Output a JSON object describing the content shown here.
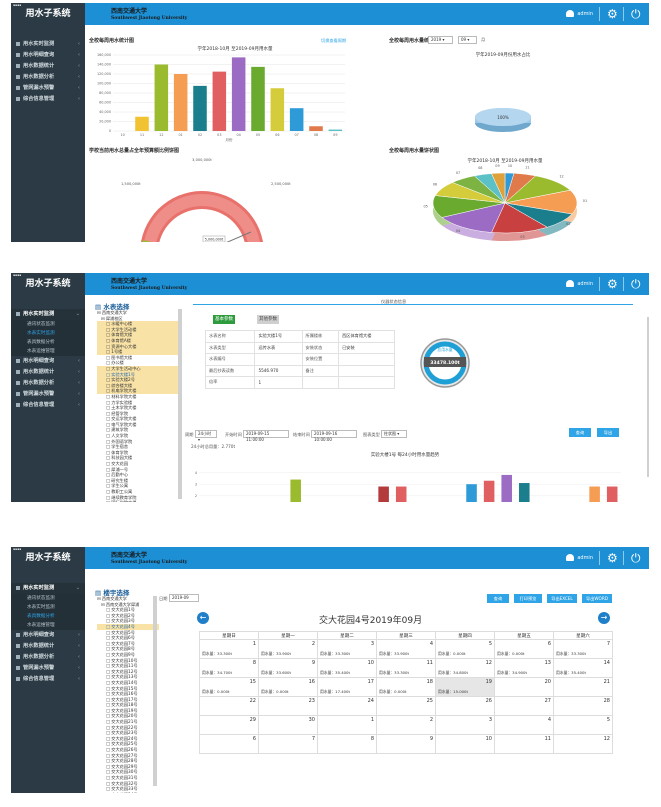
{
  "app_title": "用水子系统",
  "logo": {
    "zh": "西南交通大学",
    "en": "Southwest Jiaotong University"
  },
  "user_name": "admin",
  "nav": [
    {
      "label": "用水实时监测"
    },
    {
      "label": "用水明细查询"
    },
    {
      "label": "用水数据统计"
    },
    {
      "label": "用水数据分析"
    },
    {
      "label": "管网漏水预警"
    },
    {
      "label": "综合信息管理"
    }
  ],
  "nav_sub": [
    "通讯状态监测",
    "水表实时监测",
    "表具数据分析",
    "水表运维管理"
  ],
  "screen1": {
    "bar_title": "全校每周用水统计图",
    "bar_link": "切换查看周期",
    "bar_chart_title": "学年2018-10月 至2019-09月用水量",
    "hist_title": "全校每周用水量统计",
    "year": "2019",
    "month": "09",
    "month_suffix": "月",
    "pie1_title": "学年2019-09月份用水占比",
    "pie1_label": "100%",
    "gauge_title": "学校当前用水总量占全年预算额比例饼图",
    "gauge_labels": [
      "1,500,000t",
      "3,000,000t",
      "2,500,000t",
      "1,500,000t"
    ],
    "gauge_value_label": "5,000,000t",
    "pie2_title": "全校每周用水量饼状图",
    "pie2_chart_title": "学年2018-10月 至2019-09月用水量"
  },
  "chart_data": [
    {
      "type": "bar",
      "title": "学年2018-10月 至2019-09月用水量",
      "xlabel": "月份",
      "ylabel": "",
      "categories": [
        "10",
        "11",
        "12",
        "01",
        "02",
        "03",
        "04",
        "05",
        "06",
        "07",
        "08",
        "09"
      ],
      "values": [
        0,
        30000,
        140000,
        120000,
        95000,
        125000,
        155000,
        135000,
        90000,
        48000,
        10000,
        3000
      ],
      "yticks": [
        "0",
        "20,000",
        "40,000",
        "60,000",
        "80,000",
        "100,000",
        "120,000",
        "140,000",
        "160,000"
      ],
      "ylim": [
        0,
        160000
      ],
      "colors": [
        "#7cb342",
        "#f1c232",
        "#9bbb2e",
        "#f49d53",
        "#1b7e8d",
        "#e06062",
        "#9c6cc4",
        "#6aaa2f",
        "#d4cc3a",
        "#2f9ad8",
        "#e07a4a",
        "#5cc1c6"
      ]
    },
    {
      "type": "pie",
      "title": "学年2019-09月份用水占比",
      "values": [
        100
      ],
      "labels": [
        "100%"
      ]
    },
    {
      "type": "pie",
      "title": "学年2018-10月 至2019-09月用水量",
      "labels": [
        "10",
        "11",
        "12",
        "01",
        "02",
        "03",
        "04",
        "05",
        "06",
        "07",
        "08",
        "09"
      ],
      "values": [
        2,
        5,
        11,
        13,
        9,
        13,
        14,
        12,
        8,
        6,
        4,
        3
      ],
      "colors": [
        "#2f9ad8",
        "#e07a4a",
        "#9bbb2e",
        "#f49d53",
        "#1b7e8d",
        "#c94040",
        "#9c6cc4",
        "#6aaa2f",
        "#d4cc3a",
        "#7cb342",
        "#5cc1c6",
        "#e0a03a"
      ]
    },
    {
      "type": "bar",
      "title": "实验大楼1号 每24小时用水量趋势",
      "categories": [
        "1",
        "2",
        "3",
        "4",
        "5",
        "6",
        "7",
        "8",
        "9",
        "10",
        "11",
        "12",
        "13",
        "14",
        "15",
        "16",
        "17",
        "18",
        "19",
        "20",
        "21",
        "22",
        "23",
        "24"
      ],
      "values": [
        0,
        0,
        0,
        0,
        0,
        3.4,
        0,
        0,
        0,
        0,
        2.8,
        2.8,
        0,
        0,
        0,
        3.0,
        3.3,
        3.8,
        3.1,
        0,
        0,
        0,
        2.8,
        2.8
      ],
      "yticks": [
        "0",
        "1",
        "2",
        "3",
        "4"
      ],
      "ylim": [
        0,
        5
      ],
      "colors": [
        "#9bbb2e",
        "#9bbb2e",
        "#9bbb2e",
        "#9bbb2e",
        "#9bbb2e",
        "#9bbb2e",
        "#9bbb2e",
        "#9bbb2e",
        "#9bbb2e",
        "#9bbb2e",
        "#b43b3b",
        "#e06062",
        "#9bbb2e",
        "#9bbb2e",
        "#9bbb2e",
        "#2f9ad8",
        "#e06062",
        "#9c6cc4",
        "#1b7e8d",
        "#9bbb2e",
        "#9bbb2e",
        "#9bbb2e",
        "#f49d53",
        "#e06062"
      ]
    }
  ],
  "screen2": {
    "tree_title": "水表选择",
    "breadcrumb": "仪器状态信息",
    "tab_basic": "基本参数",
    "tab_other": "其他参数",
    "info": [
      [
        "水表名称",
        "实验大楼1号",
        "所属楼栋",
        "西区体育馆大楼"
      ],
      [
        "水表类型",
        "远传水表",
        "安装状态",
        "已安装"
      ],
      [
        "水表编号",
        "",
        "安装位置",
        ""
      ],
      [
        "最后抄表读数",
        "5546.970",
        "备注",
        ""
      ],
      [
        "倍率",
        "1",
        "",
        ""
      ]
    ],
    "gauge_label": "总用水量",
    "gauge_value": "33478.100t",
    "period_label": "周期",
    "period_value": "24小时",
    "start_label": "开始时间",
    "start_value": "2019-09-15 11:00:00",
    "end_label": "结束时间",
    "end_value": "2019-09-16 10:00:00",
    "chart_type_label": "图表类型",
    "chart_type_value": "柱状图",
    "query_btn": "查询",
    "export_btn": "导出",
    "total_label": "24小时总用量：2.770t",
    "chart_title": "实验大楼1号 每24小时用水量趋势"
  },
  "screen3": {
    "tree_title": "楼宇选择",
    "date_label": "日期",
    "date_value": "2019-09",
    "btn_query": "查询",
    "btn_print": "打印预览",
    "btn_excel": "导出EXCEL",
    "btn_word": "导出WORD",
    "cal_title": "交大花园4号2019年09月",
    "weekdays": [
      "星期日",
      "星期一",
      "星期二",
      "星期三",
      "星期四",
      "星期五",
      "星期六"
    ],
    "weeks": [
      [
        {
          "d": "1",
          "u": "用水量：33.300t"
        },
        {
          "d": "2",
          "u": "用水量：33.900t"
        },
        {
          "d": "3",
          "u": "用水量：33.300t"
        },
        {
          "d": "4",
          "u": "用水量：33.900t"
        },
        {
          "d": "5",
          "u": "用水量：0.000t"
        },
        {
          "d": "6",
          "u": "用水量：0.000t"
        },
        {
          "d": "7",
          "u": "用水量：33.300t"
        }
      ],
      [
        {
          "d": "8",
          "u": "用水量：34.700t"
        },
        {
          "d": "9",
          "u": "用水量：33.600t"
        },
        {
          "d": "10",
          "u": "用水量：35.400t"
        },
        {
          "d": "11",
          "u": "用水量：33.300t"
        },
        {
          "d": "12",
          "u": "用水量：34.800t"
        },
        {
          "d": "13",
          "u": "用水量：34.900t"
        },
        {
          "d": "14",
          "u": "用水量：35.400t"
        }
      ],
      [
        {
          "d": "15",
          "u": "用水量：0.000t"
        },
        {
          "d": "16",
          "u": "用水量：0.000t"
        },
        {
          "d": "17",
          "u": "用水量：17.400t"
        },
        {
          "d": "18",
          "u": "用水量：0.000t"
        },
        {
          "d": "19",
          "u": "用水量：15.000t"
        },
        {
          "d": "20",
          "u": ""
        },
        {
          "d": "21",
          "u": ""
        }
      ],
      [
        {
          "d": "22",
          "u": ""
        },
        {
          "d": "23",
          "u": ""
        },
        {
          "d": "24",
          "u": ""
        },
        {
          "d": "25",
          "u": ""
        },
        {
          "d": "26",
          "u": ""
        },
        {
          "d": "27",
          "u": ""
        },
        {
          "d": "28",
          "u": ""
        }
      ],
      [
        {
          "d": "29",
          "u": ""
        },
        {
          "d": "30",
          "u": ""
        },
        {
          "d": "1",
          "u": ""
        },
        {
          "d": "2",
          "u": ""
        },
        {
          "d": "3",
          "u": ""
        },
        {
          "d": "4",
          "u": ""
        },
        {
          "d": "5",
          "u": ""
        }
      ],
      [
        {
          "d": "6",
          "u": ""
        },
        {
          "d": "7",
          "u": ""
        },
        {
          "d": "8",
          "u": ""
        },
        {
          "d": "9",
          "u": ""
        },
        {
          "d": "10",
          "u": ""
        },
        {
          "d": "11",
          "u": ""
        },
        {
          "d": "12",
          "u": ""
        }
      ]
    ]
  },
  "tree2": [
    "西南交通大学",
    "犀浦校区",
    "水暖中心楼",
    "大学生活动楼",
    "体育馆大楼",
    "体育馆A楼",
    "资源中心大楼",
    "1号楼",
    "图书馆大楼",
    "办公楼",
    "大学生活动中心",
    "实验大楼1号",
    "实验大楼2号",
    "综合楼大楼",
    "机电学院大楼",
    "材料学院大楼",
    "力学实验楼",
    "土木学院大楼",
    "经管学院",
    "交运学院大楼",
    "电气学院大楼",
    "建筑学院",
    "人文学院",
    "外国语学院",
    "学生宿舍",
    "体育学院",
    "科技园大楼",
    "交大花园",
    "犀浦一号",
    "后勤中心",
    "研究生楼",
    "学生公寓",
    "教职工公寓",
    "继续教育学院",
    "国际学院大楼",
    "学生食堂",
    "东区食堂",
    "北区大楼",
    "西区大楼"
  ],
  "tree3": [
    "西南交通大学",
    "西南交通大学犀浦",
    "交大花园1号",
    "交大花园2号",
    "交大花园3号",
    "交大花园4号",
    "交大花园5号",
    "交大花园6号",
    "交大花园7号",
    "交大花园8号",
    "交大花园9号",
    "交大花园10号",
    "交大花园11号",
    "交大花园12号",
    "交大花园13号",
    "交大花园14号",
    "交大花园15号",
    "交大花园16号",
    "交大花园17号",
    "交大花园18号",
    "交大花园19号",
    "交大花园20号",
    "交大花园21号",
    "交大花园22号",
    "交大花园23号",
    "交大花园24号",
    "交大花园25号",
    "交大花园26号",
    "交大花园27号",
    "交大花园28号",
    "交大花园29号",
    "交大花园30号",
    "交大花园31号",
    "交大花园32号",
    "交大花园33号",
    "交大花园34号",
    "交大花园35号",
    "交大花园36号"
  ]
}
